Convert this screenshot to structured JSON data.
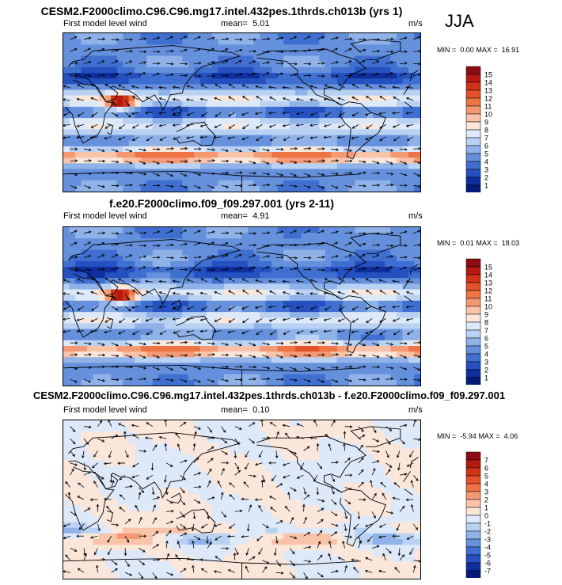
{
  "season": "JJA",
  "chart_data": [
    {
      "type": "heatmap",
      "title": "CESM2.F2000climo.C96.C96.mg17.intel.432pes.1thrds.ch013b (yrs 1)",
      "variable_label": "First model level wind",
      "mean_label": "mean=",
      "mean_value": "5.01",
      "units": "m/s",
      "min_label": "MIN =",
      "min_value": "0.00",
      "max_label": "MAX =",
      "max_value": "16.91",
      "colorbar_levels": [
        "15",
        "14",
        "13",
        "12",
        "11",
        "10",
        "9",
        "8",
        "7",
        "6",
        "5",
        "4",
        "3",
        "2",
        "1"
      ],
      "colorbar_colors": [
        "#8b0c12",
        "#b41a10",
        "#d03318",
        "#e3522c",
        "#ee7446",
        "#f39a74",
        "#f8c3a8",
        "#fbe6da",
        "#dde9f8",
        "#b9d1f2",
        "#8fb2e9",
        "#6590dc",
        "#3f6fd0",
        "#2450c0",
        "#0f2f9e",
        "#061a78"
      ],
      "field_range": [
        0,
        16.91
      ]
    },
    {
      "type": "heatmap",
      "title": "f.e20.F2000climo.f09_f09.297.001 (yrs 2-11)",
      "variable_label": "First model level wind",
      "mean_label": "mean=",
      "mean_value": "4.91",
      "units": "m/s",
      "min_label": "MIN =",
      "min_value": "0.01",
      "max_label": "MAX =",
      "max_value": "18.03",
      "colorbar_levels": [
        "15",
        "14",
        "13",
        "12",
        "11",
        "10",
        "9",
        "8",
        "7",
        "6",
        "5",
        "4",
        "3",
        "2",
        "1"
      ],
      "colorbar_colors": [
        "#8b0c12",
        "#b41a10",
        "#d03318",
        "#e3522c",
        "#ee7446",
        "#f39a74",
        "#f8c3a8",
        "#fbe6da",
        "#dde9f8",
        "#b9d1f2",
        "#8fb2e9",
        "#6590dc",
        "#3f6fd0",
        "#2450c0",
        "#0f2f9e",
        "#061a78"
      ],
      "field_range": [
        0.01,
        18.03
      ]
    },
    {
      "type": "heatmap",
      "title": "CESM2.F2000climo.C96.C96.mg17.intel.432pes.1thrds.ch013b - f.e20.F2000climo.f09_f09.297.001",
      "variable_label": "First model level wind",
      "mean_label": "mean=",
      "mean_value": "0.10",
      "units": "m/s",
      "min_label": "MIN =",
      "min_value": "-5.94",
      "max_label": "MAX =",
      "max_value": "4.06",
      "colorbar_levels": [
        "7",
        "6",
        "5",
        "4",
        "3",
        "2",
        "1",
        "0",
        "-1",
        "-2",
        "-3",
        "-4",
        "-5",
        "-6",
        "-7"
      ],
      "colorbar_colors": [
        "#8b0c12",
        "#b41a10",
        "#d03318",
        "#e3522c",
        "#ee7446",
        "#f39a74",
        "#f8c3a8",
        "#fbe6da",
        "#dde9f8",
        "#b9d1f2",
        "#8fb2e9",
        "#6590dc",
        "#3f6fd0",
        "#2450c0",
        "#0f2f9e",
        "#061a78"
      ],
      "field_range": [
        -5.94,
        4.06
      ]
    }
  ]
}
